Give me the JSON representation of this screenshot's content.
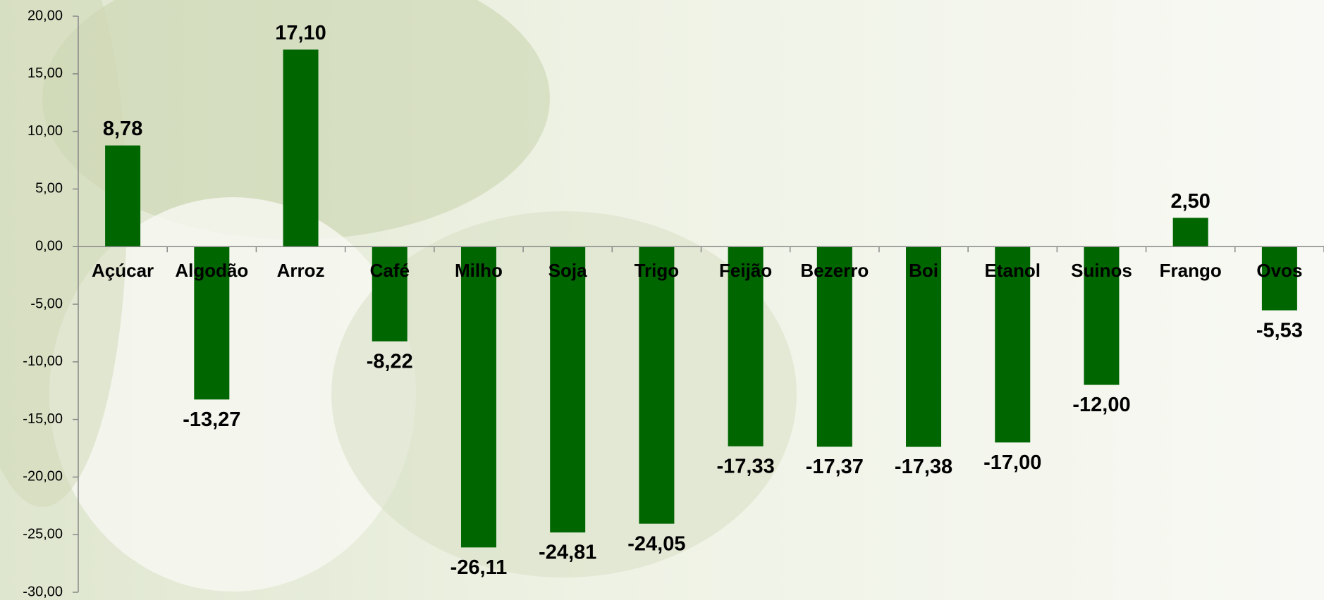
{
  "chart_data": {
    "type": "bar",
    "categories": [
      "Açúcar",
      "Algodão",
      "Arroz",
      "Café",
      "Milho",
      "Soja",
      "Trigo",
      "Feijão",
      "Bezerro",
      "Boi",
      "Etanol",
      "Suinos",
      "Frango",
      "Ovos"
    ],
    "values": [
      8.78,
      -13.27,
      17.1,
      -8.22,
      -26.11,
      -24.81,
      -24.05,
      -17.33,
      -17.37,
      -17.38,
      -17.0,
      -12.0,
      2.5,
      -5.53
    ],
    "value_labels": [
      "8,78",
      "-13,27",
      "17,10",
      "-8,22",
      "-26,11",
      "-24,81",
      "-24,05",
      "-17,33",
      "-17,37",
      "-17,38",
      "-17,00",
      "-12,00",
      "2,50",
      "-5,53"
    ],
    "color": "#006600",
    "ylim": [
      -30,
      20
    ],
    "yticks": [
      {
        "value": -30,
        "label": "-30,00"
      },
      {
        "value": -25,
        "label": "-25,00"
      },
      {
        "value": -20,
        "label": "-20,00"
      },
      {
        "value": -15,
        "label": "-15,00"
      },
      {
        "value": -10,
        "label": "-10,00"
      },
      {
        "value": -5,
        "label": "-5,00"
      },
      {
        "value": 0,
        "label": "0,00"
      },
      {
        "value": 5,
        "label": "5,00"
      },
      {
        "value": 10,
        "label": "10,00"
      },
      {
        "value": 15,
        "label": "15,00"
      },
      {
        "value": 20,
        "label": "20,00"
      }
    ]
  }
}
